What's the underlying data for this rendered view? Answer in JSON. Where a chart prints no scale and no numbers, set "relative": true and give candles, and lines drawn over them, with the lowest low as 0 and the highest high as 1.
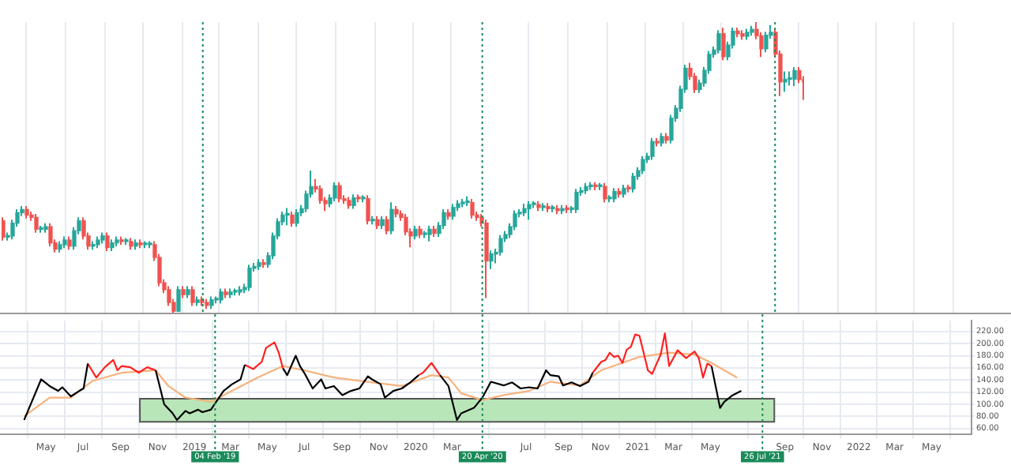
{
  "chart_data": [
    {
      "type": "candlestick",
      "relative": true,
      "tick_labels": false,
      "categories": [
        null,
        null,
        null,
        null,
        null,
        null,
        null,
        null,
        null,
        null,
        null,
        null,
        null,
        null,
        null,
        null,
        null,
        null,
        null,
        null,
        null,
        null,
        null,
        null,
        null,
        null,
        null,
        null,
        null,
        null,
        null,
        null,
        null,
        null,
        null,
        null,
        null,
        null,
        null,
        null,
        null,
        null,
        null,
        null,
        null,
        null,
        null,
        null,
        null,
        null,
        null,
        null,
        null,
        null,
        null,
        null,
        null,
        null,
        null,
        null,
        null,
        null,
        null,
        null,
        null,
        null,
        null,
        null,
        null,
        null,
        null,
        null,
        null,
        null,
        null,
        null,
        null,
        null,
        null,
        null,
        null,
        null,
        null,
        null,
        null,
        null,
        null,
        null,
        null,
        null,
        null,
        null,
        null,
        null,
        null,
        null,
        null,
        null,
        null,
        null,
        null,
        null,
        null,
        null,
        null,
        null,
        null,
        null,
        null,
        null,
        null,
        null,
        null,
        null,
        null,
        null,
        null,
        null,
        null,
        null,
        null,
        null,
        null,
        null,
        null,
        null,
        null,
        null,
        null,
        null,
        null,
        null,
        null,
        null,
        null,
        null,
        null,
        null,
        null,
        null,
        null,
        null,
        null,
        null,
        null,
        null,
        null,
        null,
        null,
        null,
        null,
        null,
        null,
        null,
        null,
        null,
        null,
        null,
        null,
        null,
        null,
        null,
        null,
        null,
        null,
        null,
        null,
        null,
        null,
        null
      ],
      "ohlc": [
        [
          0.316,
          0.328,
          0.248,
          0.26
        ],
        [
          0.26,
          0.276,
          0.248,
          0.264
        ],
        [
          0.264,
          0.32,
          0.252,
          0.308
        ],
        [
          0.308,
          0.356,
          0.296,
          0.344
        ],
        [
          0.344,
          0.367,
          0.332,
          0.355
        ],
        [
          0.355,
          0.367,
          0.324,
          0.336
        ],
        [
          0.336,
          0.348,
          0.316,
          0.328
        ],
        [
          0.328,
          0.34,
          0.275,
          0.287
        ],
        [
          0.287,
          0.299,
          0.275,
          0.287
        ],
        [
          0.287,
          0.308,
          0.275,
          0.296
        ],
        [
          0.296,
          0.308,
          0.228,
          0.24
        ],
        [
          0.24,
          0.252,
          0.207,
          0.219
        ],
        [
          0.219,
          0.246,
          0.207,
          0.234
        ],
        [
          0.234,
          0.262,
          0.222,
          0.25
        ],
        [
          0.25,
          0.262,
          0.217,
          0.229
        ],
        [
          0.229,
          0.294,
          0.217,
          0.282
        ],
        [
          0.282,
          0.328,
          0.27,
          0.316
        ],
        [
          0.316,
          0.328,
          0.252,
          0.264
        ],
        [
          0.264,
          0.276,
          0.217,
          0.229
        ],
        [
          0.229,
          0.246,
          0.217,
          0.234
        ],
        [
          0.234,
          0.262,
          0.222,
          0.25
        ],
        [
          0.25,
          0.276,
          0.238,
          0.264
        ],
        [
          0.264,
          0.276,
          0.212,
          0.224
        ],
        [
          0.224,
          0.252,
          0.212,
          0.24
        ],
        [
          0.24,
          0.262,
          0.228,
          0.25
        ],
        [
          0.25,
          0.262,
          0.233,
          0.245
        ],
        [
          0.245,
          0.257,
          0.233,
          0.245
        ],
        [
          0.245,
          0.257,
          0.217,
          0.229
        ],
        [
          0.229,
          0.252,
          0.217,
          0.24
        ],
        [
          0.24,
          0.252,
          0.222,
          0.234
        ],
        [
          0.234,
          0.246,
          0.222,
          0.234
        ],
        [
          0.234,
          0.246,
          0.222,
          0.234
        ],
        [
          0.234,
          0.246,
          0.178,
          0.19
        ],
        [
          0.19,
          0.202,
          0.091,
          0.103
        ],
        [
          0.103,
          0.115,
          0.067,
          0.079
        ],
        [
          0.079,
          0.091,
          0.023,
          0.035
        ],
        [
          0.035,
          0.047,
          0,
          0.005
        ],
        [
          0.005,
          0.091,
          0.003,
          0.079
        ],
        [
          0.079,
          0.091,
          0.05,
          0.062
        ],
        [
          0.062,
          0.091,
          0.05,
          0.079
        ],
        [
          0.079,
          0.091,
          0.023,
          0.035
        ],
        [
          0.035,
          0.056,
          0.023,
          0.044
        ],
        [
          0.044,
          0.056,
          0.023,
          0.035
        ],
        [
          0.035,
          0.047,
          0.013,
          0.025
        ],
        [
          0.025,
          0.056,
          0.013,
          0.044
        ],
        [
          0.044,
          0.056,
          0.032,
          0.044
        ],
        [
          0.044,
          0.083,
          0.032,
          0.071
        ],
        [
          0.071,
          0.083,
          0.05,
          0.062
        ],
        [
          0.062,
          0.083,
          0.05,
          0.071
        ],
        [
          0.071,
          0.083,
          0.059,
          0.071
        ],
        [
          0.071,
          0.091,
          0.059,
          0.079
        ],
        [
          0.079,
          0.099,
          0.067,
          0.087
        ],
        [
          0.087,
          0.165,
          0.075,
          0.153
        ],
        [
          0.153,
          0.171,
          0.141,
          0.159
        ],
        [
          0.159,
          0.184,
          0.147,
          0.172
        ],
        [
          0.172,
          0.184,
          0.154,
          0.166
        ],
        [
          0.166,
          0.208,
          0.154,
          0.196
        ],
        [
          0.196,
          0.276,
          0.184,
          0.264
        ],
        [
          0.264,
          0.325,
          0.252,
          0.313
        ],
        [
          0.313,
          0.348,
          0.301,
          0.336
        ],
        [
          0.336,
          0.36,
          0.3,
          0.336
        ],
        [
          0.336,
          0.348,
          0.296,
          0.308
        ],
        [
          0.308,
          0.356,
          0.296,
          0.344
        ],
        [
          0.344,
          0.37,
          0.332,
          0.358
        ],
        [
          0.358,
          0.42,
          0.346,
          0.408
        ],
        [
          0.408,
          0.489,
          0.396,
          0.434
        ],
        [
          0.434,
          0.46,
          0.414,
          0.426
        ],
        [
          0.426,
          0.438,
          0.374,
          0.386
        ],
        [
          0.386,
          0.398,
          0.35,
          0.375
        ],
        [
          0.375,
          0.407,
          0.363,
          0.395
        ],
        [
          0.395,
          0.449,
          0.383,
          0.437
        ],
        [
          0.437,
          0.449,
          0.38,
          0.392
        ],
        [
          0.392,
          0.404,
          0.374,
          0.386
        ],
        [
          0.386,
          0.398,
          0.357,
          0.369
        ],
        [
          0.369,
          0.407,
          0.357,
          0.395
        ],
        [
          0.395,
          0.407,
          0.38,
          0.392
        ],
        [
          0.392,
          0.404,
          0.38,
          0.392
        ],
        [
          0.392,
          0.404,
          0.304,
          0.316
        ],
        [
          0.316,
          0.332,
          0.304,
          0.32
        ],
        [
          0.32,
          0.332,
          0.288,
          0.3
        ],
        [
          0.3,
          0.332,
          0.288,
          0.32
        ],
        [
          0.32,
          0.332,
          0.27,
          0.282
        ],
        [
          0.282,
          0.38,
          0.27,
          0.355
        ],
        [
          0.355,
          0.367,
          0.328,
          0.34
        ],
        [
          0.34,
          0.352,
          0.316,
          0.328
        ],
        [
          0.328,
          0.34,
          0.266,
          0.278
        ],
        [
          0.278,
          0.29,
          0.225,
          0.264
        ],
        [
          0.264,
          0.299,
          0.252,
          0.287
        ],
        [
          0.287,
          0.299,
          0.257,
          0.269
        ],
        [
          0.269,
          0.281,
          0.257,
          0.269
        ],
        [
          0.269,
          0.299,
          0.245,
          0.287
        ],
        [
          0.287,
          0.299,
          0.261,
          0.273
        ],
        [
          0.273,
          0.312,
          0.261,
          0.3
        ],
        [
          0.3,
          0.356,
          0.288,
          0.344
        ],
        [
          0.344,
          0.356,
          0.32,
          0.332
        ],
        [
          0.332,
          0.374,
          0.32,
          0.362
        ],
        [
          0.362,
          0.387,
          0.35,
          0.375
        ],
        [
          0.375,
          0.391,
          0.363,
          0.379
        ],
        [
          0.379,
          0.4,
          0.367,
          0.379
        ],
        [
          0.379,
          0.391,
          0.324,
          0.336
        ],
        [
          0.336,
          0.348,
          0.316,
          0.328
        ],
        [
          0.328,
          0.34,
          0.296,
          0.308
        ],
        [
          0.308,
          0.32,
          0.05,
          0.178
        ],
        [
          0.178,
          0.214,
          0.15,
          0.202
        ],
        [
          0.202,
          0.22,
          0.17,
          0.208
        ],
        [
          0.208,
          0.267,
          0.196,
          0.255
        ],
        [
          0.255,
          0.281,
          0.243,
          0.269
        ],
        [
          0.269,
          0.308,
          0.257,
          0.296
        ],
        [
          0.296,
          0.352,
          0.284,
          0.34
        ],
        [
          0.34,
          0.356,
          0.328,
          0.344
        ],
        [
          0.344,
          0.375,
          0.332,
          0.358
        ],
        [
          0.358,
          0.384,
          0.32,
          0.372
        ],
        [
          0.372,
          0.384,
          0.36,
          0.372
        ],
        [
          0.372,
          0.384,
          0.35,
          0.362
        ],
        [
          0.362,
          0.377,
          0.35,
          0.365
        ],
        [
          0.365,
          0.377,
          0.346,
          0.358
        ],
        [
          0.358,
          0.37,
          0.346,
          0.358
        ],
        [
          0.358,
          0.37,
          0.339,
          0.351
        ],
        [
          0.351,
          0.37,
          0.339,
          0.358
        ],
        [
          0.358,
          0.37,
          0.343,
          0.355
        ],
        [
          0.355,
          0.367,
          0.343,
          0.355
        ],
        [
          0.355,
          0.426,
          0.343,
          0.414
        ],
        [
          0.414,
          0.432,
          0.402,
          0.42
        ],
        [
          0.42,
          0.446,
          0.408,
          0.434
        ],
        [
          0.434,
          0.449,
          0.422,
          0.437
        ],
        [
          0.437,
          0.449,
          0.422,
          0.434
        ],
        [
          0.434,
          0.446,
          0.422,
          0.434
        ],
        [
          0.434,
          0.446,
          0.38,
          0.392
        ],
        [
          0.392,
          0.404,
          0.38,
          0.392
        ],
        [
          0.392,
          0.429,
          0.38,
          0.417
        ],
        [
          0.417,
          0.429,
          0.396,
          0.408
        ],
        [
          0.408,
          0.44,
          0.396,
          0.428
        ],
        [
          0.428,
          0.44,
          0.414,
          0.426
        ],
        [
          0.426,
          0.481,
          0.414,
          0.469
        ],
        [
          0.469,
          0.501,
          0.457,
          0.489
        ],
        [
          0.489,
          0.539,
          0.477,
          0.527
        ],
        [
          0.527,
          0.55,
          0.515,
          0.538
        ],
        [
          0.538,
          0.601,
          0.526,
          0.589
        ],
        [
          0.589,
          0.601,
          0.572,
          0.584
        ],
        [
          0.584,
          0.618,
          0.572,
          0.606
        ],
        [
          0.606,
          0.618,
          0.582,
          0.594
        ],
        [
          0.594,
          0.681,
          0.582,
          0.669
        ],
        [
          0.669,
          0.715,
          0.657,
          0.703
        ],
        [
          0.703,
          0.781,
          0.691,
          0.769
        ],
        [
          0.769,
          0.853,
          0.757,
          0.841
        ],
        [
          0.841,
          0.86,
          0.801,
          0.813
        ],
        [
          0.813,
          0.825,
          0.756,
          0.768
        ],
        [
          0.768,
          0.802,
          0.756,
          0.79
        ],
        [
          0.79,
          0.846,
          0.778,
          0.834
        ],
        [
          0.834,
          0.901,
          0.822,
          0.889
        ],
        [
          0.889,
          0.916,
          0.877,
          0.904
        ],
        [
          0.904,
          0.972,
          0.892,
          0.96
        ],
        [
          0.96,
          0.98,
          0.869,
          0.881
        ],
        [
          0.881,
          0.933,
          0.869,
          0.921
        ],
        [
          0.921,
          0.981,
          0.909,
          0.969
        ],
        [
          0.969,
          0.981,
          0.948,
          0.96
        ],
        [
          0.96,
          0.972,
          0.939,
          0.951
        ],
        [
          0.951,
          0.977,
          0.939,
          0.965
        ],
        [
          0.965,
          0.987,
          0.953,
          0.975
        ],
        [
          0.975,
          1,
          0.941,
          0.953
        ],
        [
          0.953,
          0.965,
          0.88,
          0.908
        ],
        [
          0.908,
          0.967,
          0.896,
          0.955
        ],
        [
          0.955,
          0.99,
          0.943,
          0.965
        ],
        [
          0.965,
          0.977,
          0.878,
          0.89
        ],
        [
          0.89,
          0.902,
          0.745,
          0.794
        ],
        [
          0.794,
          0.83,
          0.76,
          0.803
        ],
        [
          0.803,
          0.83,
          0.782,
          0.804
        ],
        [
          0.804,
          0.845,
          0.78,
          0.833
        ],
        [
          0.833,
          0.845,
          0.79,
          0.802
        ],
        [
          0.802,
          0.814,
          0.732,
          0.794
        ]
      ]
    },
    {
      "type": "line",
      "grid": true,
      "xlim": [
        "2018-03-21",
        "2022-06-01"
      ],
      "xticks": [
        {
          "value": "2018-05-01",
          "label": "May"
        },
        {
          "value": "2018-07-01",
          "label": "Jul"
        },
        {
          "value": "2018-09-01",
          "label": "Sep"
        },
        {
          "value": "2018-11-01",
          "label": "Nov"
        },
        {
          "value": "2019-01-01",
          "label": "2019"
        },
        {
          "value": "2019-03-01",
          "label": "Mar"
        },
        {
          "value": "2019-05-01",
          "label": "May"
        },
        {
          "value": "2019-07-01",
          "label": "Jul"
        },
        {
          "value": "2019-09-01",
          "label": "Sep"
        },
        {
          "value": "2019-11-01",
          "label": "Nov"
        },
        {
          "value": "2020-01-01",
          "label": "2020"
        },
        {
          "value": "2020-03-01",
          "label": "Mar"
        },
        {
          "value": "2020-07-01",
          "label": "Jul"
        },
        {
          "value": "2020-09-01",
          "label": "Sep"
        },
        {
          "value": "2020-11-01",
          "label": "Nov"
        },
        {
          "value": "2021-01-01",
          "label": "2021"
        },
        {
          "value": "2021-03-01",
          "label": "Mar"
        },
        {
          "value": "2021-05-01",
          "label": "May"
        },
        {
          "value": "2021-09-01",
          "label": "Sep"
        },
        {
          "value": "2021-11-01",
          "label": "Nov"
        },
        {
          "value": "2022-01-01",
          "label": "2022"
        },
        {
          "value": "2022-03-01",
          "label": "Mar"
        },
        {
          "value": "2022-05-01",
          "label": "May"
        }
      ],
      "ylim": [
        51,
        238
      ],
      "yticks": [
        {
          "value": 60,
          "label": "60.00"
        },
        {
          "value": 80,
          "label": "80.00"
        },
        {
          "value": 100,
          "label": "100.00"
        },
        {
          "value": 120,
          "label": "120.00"
        },
        {
          "value": 140,
          "label": "140.00"
        },
        {
          "value": 160,
          "label": "160.00"
        },
        {
          "value": 180,
          "label": "180.00"
        },
        {
          "value": 200,
          "label": "200.00"
        },
        {
          "value": 220,
          "label": "220.00"
        }
      ],
      "bands": [
        {
          "axis": "y",
          "from": 71,
          "to": 109,
          "label": null,
          "color": "#b9e6b9"
        }
      ],
      "ref_lines": [
        {
          "axis": "x",
          "value": "2019-02-04",
          "label": "04 Feb '19",
          "color": "#1b8a5a",
          "line_style": "dotted"
        },
        {
          "axis": "x",
          "value": "2020-04-20",
          "label": "20 Apr '20",
          "color": "#1b8a5a",
          "line_style": "dotted"
        },
        {
          "axis": "x",
          "value": "2021-07-26",
          "label": "26 Jul '21",
          "color": "#1b8a5a",
          "line_style": "dotted"
        }
      ],
      "x": [
        "2018-03-26",
        "2018-04-23",
        "2018-05-07",
        "2018-05-21",
        "2018-05-28",
        "2018-06-11",
        "2018-06-25",
        "2018-07-02",
        "2018-07-09",
        "2018-07-23",
        "2018-08-06",
        "2018-08-20",
        "2018-08-27",
        "2018-09-03",
        "2018-09-17",
        "2018-10-01",
        "2018-10-15",
        "2018-10-29",
        "2018-11-12",
        "2018-11-26",
        "2018-12-03",
        "2018-12-17",
        "2018-12-24",
        "2019-01-07",
        "2019-01-14",
        "2019-01-28",
        "2019-02-18",
        "2019-03-04",
        "2019-03-18",
        "2019-03-25",
        "2019-04-08",
        "2019-04-22",
        "2019-04-29",
        "2019-05-13",
        "2019-05-20",
        "2019-05-27",
        "2019-06-03",
        "2019-06-17",
        "2019-06-24",
        "2019-07-01",
        "2019-07-15",
        "2019-07-29",
        "2019-08-05",
        "2019-08-19",
        "2019-09-02",
        "2019-09-16",
        "2019-09-30",
        "2019-10-14",
        "2019-10-21",
        "2019-11-04",
        "2019-11-11",
        "2019-11-25",
        "2019-12-09",
        "2019-12-23",
        "2020-01-06",
        "2020-01-13",
        "2020-01-27",
        "2020-02-10",
        "2020-02-24",
        "2020-03-09",
        "2020-03-16",
        "2020-04-06",
        "2020-04-20",
        "2020-05-04",
        "2020-05-25",
        "2020-06-08",
        "2020-06-22",
        "2020-07-06",
        "2020-07-20",
        "2020-08-03",
        "2020-08-10",
        "2020-08-24",
        "2020-08-31",
        "2020-09-14",
        "2020-09-28",
        "2020-10-12",
        "2020-10-19",
        "2020-11-02",
        "2020-11-09",
        "2020-11-16",
        "2020-11-23",
        "2020-11-30",
        "2020-12-07",
        "2020-12-14",
        "2020-12-21",
        "2020-12-28",
        "2021-01-04",
        "2021-01-11",
        "2021-01-18",
        "2021-01-25",
        "2021-02-08",
        "2021-02-15",
        "2021-02-22",
        "2021-03-08",
        "2021-03-22",
        "2021-04-05",
        "2021-04-12",
        "2021-04-19",
        "2021-04-26",
        "2021-05-03",
        "2021-05-17",
        "2021-05-24",
        "2021-06-07",
        "2021-06-21"
      ],
      "series": [
        {
          "color": "#000000",
          "values": [
            74,
            141,
            130,
            122,
            128,
            113,
            122,
            126,
            167,
            null,
            null,
            null,
            null,
            null,
            null,
            null,
            null,
            156,
            100,
            85,
            74,
            89,
            85,
            91,
            87,
            91,
            122,
            133,
            141,
            165,
            null,
            null,
            null,
            null,
            null,
            159,
            148,
            180,
            163,
            152,
            126,
            141,
            126,
            130,
            115,
            122,
            126,
            146,
            141,
            133,
            111,
            122,
            126,
            136,
            148,
            null,
            null,
            148,
            130,
            74,
            85,
            94,
            111,
            137,
            131,
            136,
            126,
            128,
            126,
            156,
            148,
            146,
            131,
            136,
            130,
            137,
            152,
            null,
            null,
            null,
            null,
            null,
            null,
            null,
            null,
            null,
            null,
            null,
            null,
            null,
            null,
            null,
            null,
            null,
            null,
            null,
            null,
            null,
            null,
            163,
            94,
            104,
            115,
            122
          ]
        },
        {
          "color": "#ff2020",
          "values": [
            null,
            null,
            null,
            null,
            null,
            null,
            null,
            null,
            167,
            144,
            161,
            173,
            156,
            163,
            161,
            152,
            161,
            156,
            null,
            null,
            null,
            null,
            null,
            null,
            null,
            null,
            null,
            null,
            null,
            165,
            158,
            170,
            193,
            202,
            185,
            159,
            null,
            null,
            null,
            null,
            null,
            null,
            null,
            null,
            null,
            null,
            null,
            null,
            null,
            null,
            null,
            null,
            null,
            null,
            148,
            152,
            168,
            148,
            null,
            null,
            null,
            null,
            null,
            null,
            null,
            null,
            null,
            null,
            null,
            null,
            null,
            null,
            null,
            null,
            null,
            null,
            152,
            170,
            173,
            185,
            178,
            180,
            168,
            190,
            195,
            215,
            213,
            185,
            156,
            150,
            182,
            217,
            163,
            189,
            176,
            187,
            176,
            144,
            167,
            163,
            null,
            null,
            null,
            null
          ]
        },
        {
          "color": "#f7b27d",
          "x": [
            "2018-03-26",
            "2018-05-07",
            "2018-06-11",
            "2018-07-16",
            "2018-09-03",
            "2018-10-29",
            "2018-11-19",
            "2018-12-17",
            "2019-01-28",
            "2019-03-04",
            "2019-04-15",
            "2019-05-27",
            "2019-07-01",
            "2019-08-19",
            "2019-10-14",
            "2019-12-09",
            "2020-01-27",
            "2020-02-24",
            "2020-03-16",
            "2020-04-20",
            "2020-05-25",
            "2020-07-06",
            "2020-08-10",
            "2020-09-28",
            "2020-11-02",
            "2021-01-04",
            "2021-02-22",
            "2021-04-05",
            "2021-05-03",
            "2021-06-14"
          ],
          "values": [
            80,
            111,
            111,
            138,
            152,
            156,
            130,
            111,
            104,
            122,
            144,
            163,
            156,
            144,
            137,
            130,
            148,
            144,
            118,
            107,
            115,
            122,
            137,
            131,
            156,
            178,
            185,
            182,
            168,
            144
          ]
        }
      ]
    }
  ]
}
